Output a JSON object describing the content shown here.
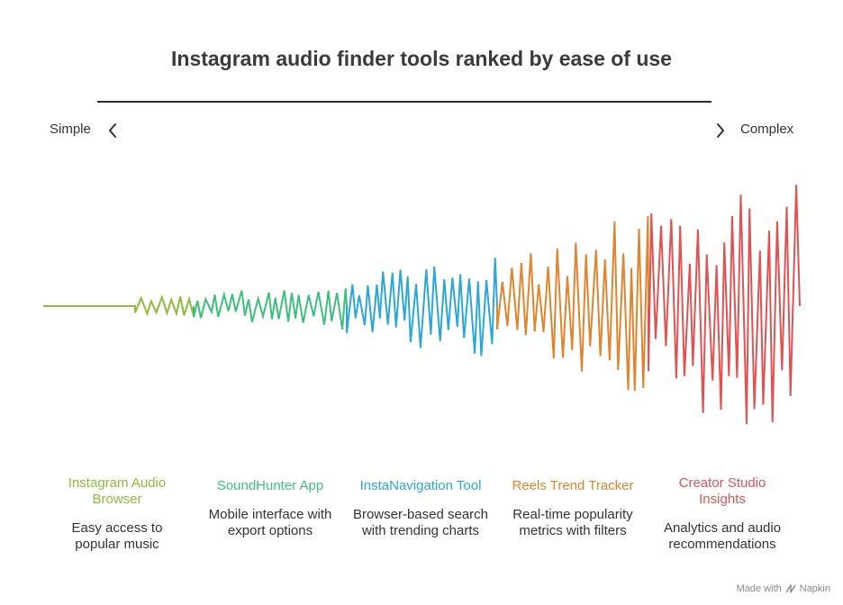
{
  "title": "Instagram audio finder tools ranked by ease of use",
  "scale": {
    "left_label": "Simple",
    "right_label": "Complex"
  },
  "stages": [
    {
      "title": "Instagram Audio Browser",
      "description": "Easy access to popular music",
      "color": "#8dbb3a"
    },
    {
      "title": "SoundHunter App",
      "description": "Mobile interface with export options",
      "color": "#3ec07a"
    },
    {
      "title": "InstaNavigation Tool",
      "description": "Browser-based search with trending charts",
      "color": "#2aa8d8"
    },
    {
      "title": "Reels Trend Tracker",
      "description": "Real-time popularity metrics with filters",
      "color": "#e0842e"
    },
    {
      "title": "Creator Studio Insights",
      "description": "Analytics and audio recommendations",
      "color": "#e05353"
    }
  ],
  "footer": {
    "text": "Made with",
    "brand": "Napkin"
  }
}
